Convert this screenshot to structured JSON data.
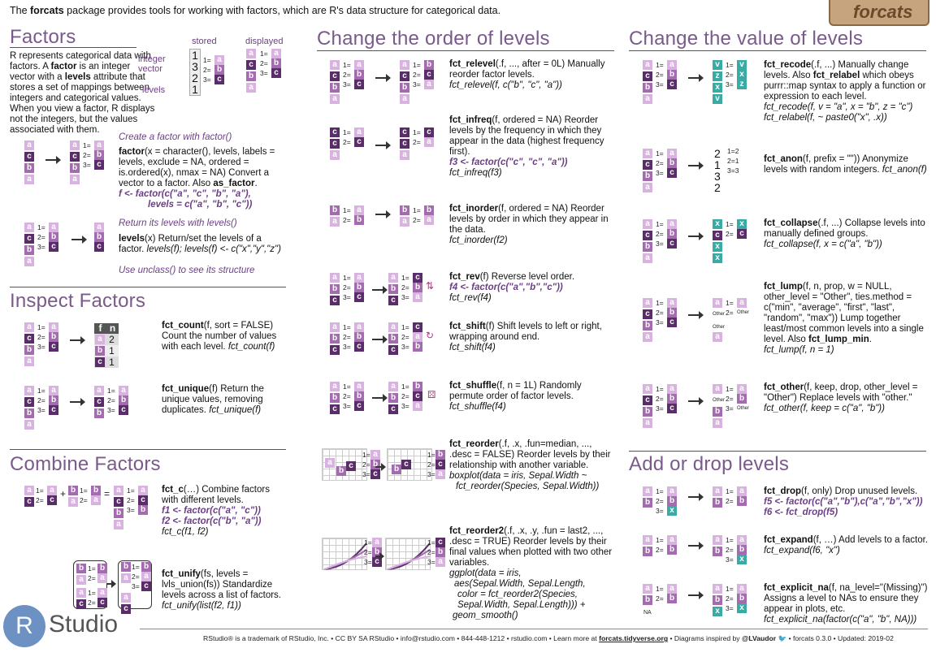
{
  "intro": {
    "pre": "The ",
    "pkg": "forcats",
    "post": " package provides tools for working with factors, which are R's data structure for categorical data."
  },
  "logo": {
    "hex_text": "forcats",
    "rstudio_r": "R",
    "rstudio_text": "Studio"
  },
  "factors": {
    "title": "Factors",
    "diagram": {
      "stored": "stored",
      "displayed": "displayed",
      "integer_vector": "integer\nvector",
      "levels": "levels",
      "stored_values": [
        "1",
        "3",
        "2",
        "1"
      ]
    },
    "desc_1": "R represents categorical data with factors. A ",
    "desc_factor": "factor",
    "desc_2": " is an integer vector with a ",
    "desc_levels": "levels",
    "desc_3": " attribute that stores a set of mappings between integers and categorical values. When you view a factor, R displays not the integers, but the values associated with them.",
    "create_note": "Create a factor with factor()",
    "factor_fn": "factor",
    "factor_sig": "(x = character(), levels, labels = levels, exclude = NA, ordered = is.ordered(x), nmax = NA) Convert a vector to a factor. Also ",
    "as_factor": "as_factor",
    "factor_ex1": "f <- factor(c(\"a\", \"c\", \"b\", \"a\"),",
    "factor_ex2": "levels = c(\"a\", \"b\", \"c\"))",
    "levels_note": "Return its levels with levels()",
    "levels_fn": "levels",
    "levels_desc": "(x) Return/set the levels of a factor. ",
    "levels_code": "levels(f); levels(f) <- c(\"x\",\"y\",\"z\")",
    "unclass_note": "Use unclass() to see its structure"
  },
  "inspect": {
    "title": "Inspect Factors",
    "count_fn": "fct_count",
    "count_desc": "(f, sort = FALSE) Count the number of values with each level. ",
    "count_code": "fct_count(f)",
    "count_table": {
      "h1": "f",
      "h2": "n",
      "rows": [
        [
          "a",
          "2"
        ],
        [
          "b",
          "1"
        ],
        [
          "c",
          "1"
        ]
      ]
    },
    "unique_fn": "fct_unique",
    "unique_desc": "(f) Return the unique values, removing duplicates. ",
    "unique_code": "fct_unique(f)"
  },
  "combine": {
    "title": "Combine Factors",
    "c_fn": "fct_c",
    "c_desc": "(…) Combine factors with different levels.",
    "c_ex1": "f1 <- factor(c(\"a\", \"c\"))",
    "c_ex2": "f2 <- factor(c(\"b\", \"a\"))",
    "c_code": "fct_c(f1, f2)",
    "unify_fn": "fct_unify",
    "unify_desc": "(fs, levels = lvls_union(fs)) Standardize levels across a list of factors.",
    "unify_code": "fct_unify(list(f2, f1))"
  },
  "order": {
    "title": "Change the order of levels",
    "relevel_fn": "fct_relevel",
    "relevel_desc": "(.f, ..., after = 0L) Manually reorder factor levels.",
    "relevel_code": "fct_relevel(f, c(\"b\", \"c\", \"a\"))",
    "infreq_fn": "fct_infreq",
    "infreq_desc": "(f, ordered = NA) Reorder levels by the frequency in which they appear in the data (highest frequency first).",
    "infreq_ex": "f3 <- factor(c(\"c\", \"c\", \"a\"))",
    "infreq_code": "fct_infreq(f3)",
    "inorder_fn": "fct_inorder",
    "inorder_desc": "(f, ordered = NA) Reorder levels by order in which they appear in the data.",
    "inorder_code": "fct_inorder(f2)",
    "rev_fn": "fct_rev",
    "rev_desc": "(f) Reverse level order.",
    "rev_ex": "f4 <- factor(c(\"a\",\"b\",\"c\"))",
    "rev_code": "fct_rev(f4)",
    "shift_fn": "fct_shift",
    "shift_desc": "(f) Shift levels to left or right, wrapping around end.",
    "shift_code": "fct_shift(f4)",
    "shuffle_fn": "fct_shuffle",
    "shuffle_desc": "(f, n = 1L) Randomly permute order of factor levels.",
    "shuffle_code": "fct_shuffle(f4)",
    "reorder_fn": "fct_reorder",
    "reorder_desc": "(.f, .x, .fun=median, ..., .desc = FALSE) Reorder levels by their relationship with another variable.",
    "reorder_code1": "boxplot(data = iris, Sepal.Width ~",
    "reorder_code2": "fct_reorder(Species, Sepal.Width))",
    "reorder2_fn": "fct_reorder2",
    "reorder2_desc": "(.f, .x, .y, .fun = last2, ..., .desc = TRUE) Reorder levels by their final values when plotted with two other variables.",
    "reorder2_code1": "ggplot(data = iris,",
    "reorder2_code2": "aes(Sepal.Width, Sepal.Length,",
    "reorder2_code3": "color = fct_reorder2(Species,",
    "reorder2_code4": "Sepal.Width, Sepal.Length))) +",
    "reorder2_code5": "geom_smooth()"
  },
  "value": {
    "title": "Change the value of levels",
    "recode_fn": "fct_recode",
    "recode_desc1": "(.f, ...) Manually change levels. Also ",
    "relabel_fn": "fct_relabel",
    "recode_desc2": " which obeys purrr::map syntax to apply a function or expression to each level.",
    "recode_code1": "fct_recode(f, v = \"a\", x = \"b\", z = \"c\")",
    "recode_code2": "fct_relabel(f, ~ paste0(\"x\", .x))",
    "anon_fn": "fct_anon",
    "anon_desc": "(f, prefix = \"\")) Anonymize levels with random integers. ",
    "anon_code": "fct_anon(f)",
    "anon_values": [
      "2",
      "1",
      "3",
      "2"
    ],
    "collapse_fn": "fct_collapse",
    "collapse_desc": "(.f, ...) Collapse levels into manually defined groups.",
    "collapse_code": "fct_collapse(f, x = c(\"a\", \"b\"))",
    "lump_fn": "fct_lump",
    "lump_desc1": "(f, n, prop, w = NULL, other_level = \"Other\", ties.method = c(\"min\", \"average\", \"first\", \"last\", \"random\", \"max\")) Lump together least/most common levels into a single level. Also ",
    "lump_min": "fct_lump_min",
    "lump_code": "fct_lump(f, n = 1)",
    "other_fn": "fct_other",
    "other_desc": "(f, keep, drop, other_level = \"Other\") Replace levels with \"other.\"",
    "other_code": "fct_other(f, keep = c(\"a\", \"b\"))",
    "other_label": "Other"
  },
  "adddrop": {
    "title": "Add or drop levels",
    "drop_fn": "fct_drop",
    "drop_desc": "(f, only) Drop unused levels.",
    "drop_ex1": "f5 <- factor(c(\"a\",\"b\"),c(\"a\",\"b\",\"x\"))",
    "drop_ex2": "f6 <- fct_drop(f5)",
    "expand_fn": "fct_expand",
    "expand_desc": "(f, …) Add levels to a factor. ",
    "expand_code": "fct_expand(f6, \"x\")",
    "explicit_fn": "fct_explicit_na",
    "explicit_desc": "(f, na_level=\"(Missing)\") Assigns a level to NAs to ensure they appear in plots, etc.",
    "explicit_code": "fct_explicit_na(factor(c(\"a\", \"b\", NA)))",
    "na_label": "NA"
  },
  "footer": {
    "pre": "RStudio® is a trademark of RStudio, Inc.  •  CC BY SA  RStudio •  info@rstudio.com  •  844-448-1212 • rstudio.com •  Learn more at ",
    "link": "forcats.tidyverse.org",
    "mid": "  •  Diagrams inspired by ",
    "handle": "@LVaudor",
    "post": "  •  forcats  0.3.0 •  Updated: 2019-02"
  },
  "colors": {
    "light": "#d9b3e0",
    "mid": "#a46bb0",
    "dark": "#5a2d6a",
    "teal": "#3aaaa5",
    "title": "#7a5a8c"
  }
}
